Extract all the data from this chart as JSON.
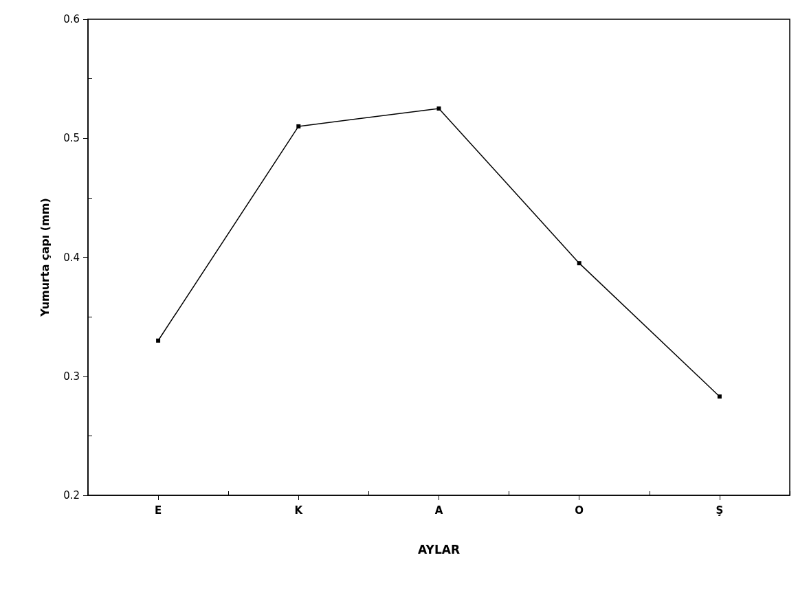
{
  "chart_data": {
    "type": "line",
    "xlabel": "AYLAR",
    "ylabel": "Yumurta çapı (mm)",
    "categories": [
      "E",
      "K",
      "A",
      "O",
      "Ş"
    ],
    "series": [
      {
        "color": "#000000",
        "values": [
          0.33,
          0.51,
          0.525,
          0.395,
          0.283
        ]
      }
    ],
    "ylim": [
      0.2,
      0.6
    ],
    "yticks": [
      0.2,
      0.3,
      0.4,
      0.5,
      0.6
    ],
    "grid": false,
    "marker": "square",
    "line_style": "solid"
  }
}
